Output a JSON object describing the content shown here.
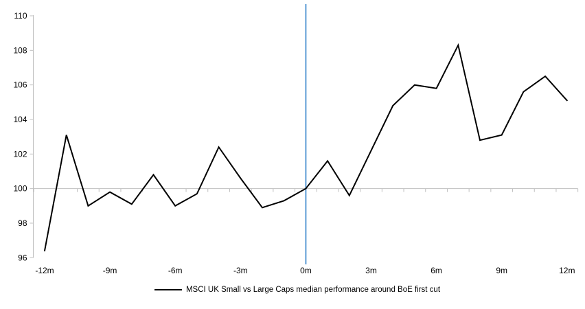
{
  "chart_data": {
    "type": "line",
    "title": "",
    "xlabel": "",
    "ylabel": "",
    "x": [
      -12,
      -11,
      -10,
      -9,
      -8,
      -7,
      -6,
      -5,
      -4,
      -3,
      -2,
      -1,
      0,
      1,
      2,
      3,
      4,
      5,
      6,
      7,
      8,
      9,
      10,
      11,
      12
    ],
    "series": [
      {
        "name": "MSCI UK Small vs Large Caps median performance around BoE first cut",
        "color": "#000000",
        "values": [
          96.4,
          103.1,
          99.0,
          99.8,
          99.1,
          100.8,
          99.0,
          99.7,
          102.4,
          100.6,
          98.9,
          99.3,
          100.0,
          101.6,
          99.6,
          102.2,
          104.8,
          106.0,
          105.8,
          108.3,
          102.8,
          103.1,
          105.6,
          106.5,
          105.1
        ]
      }
    ],
    "x_tick_positions": [
      -12,
      -9,
      -6,
      -3,
      0,
      3,
      6,
      9,
      12
    ],
    "x_tick_labels": [
      "-12m",
      "-9m",
      "-6m",
      "-3m",
      "0m",
      "3m",
      "6m",
      "9m",
      "12m"
    ],
    "y_ticks": [
      96,
      98,
      100,
      102,
      104,
      106,
      108,
      110
    ],
    "ylim": [
      96,
      110
    ],
    "baseline": 100,
    "event_line_x": 0,
    "grid": "off",
    "legend_position": "bottom",
    "colors": {
      "series": "#000000",
      "event_line": "#5B9BD5",
      "axis": "#BFBFBF",
      "text": "#000000"
    }
  },
  "legend": {
    "label": "MSCI UK Small vs Large Caps median performance around BoE first cut"
  }
}
